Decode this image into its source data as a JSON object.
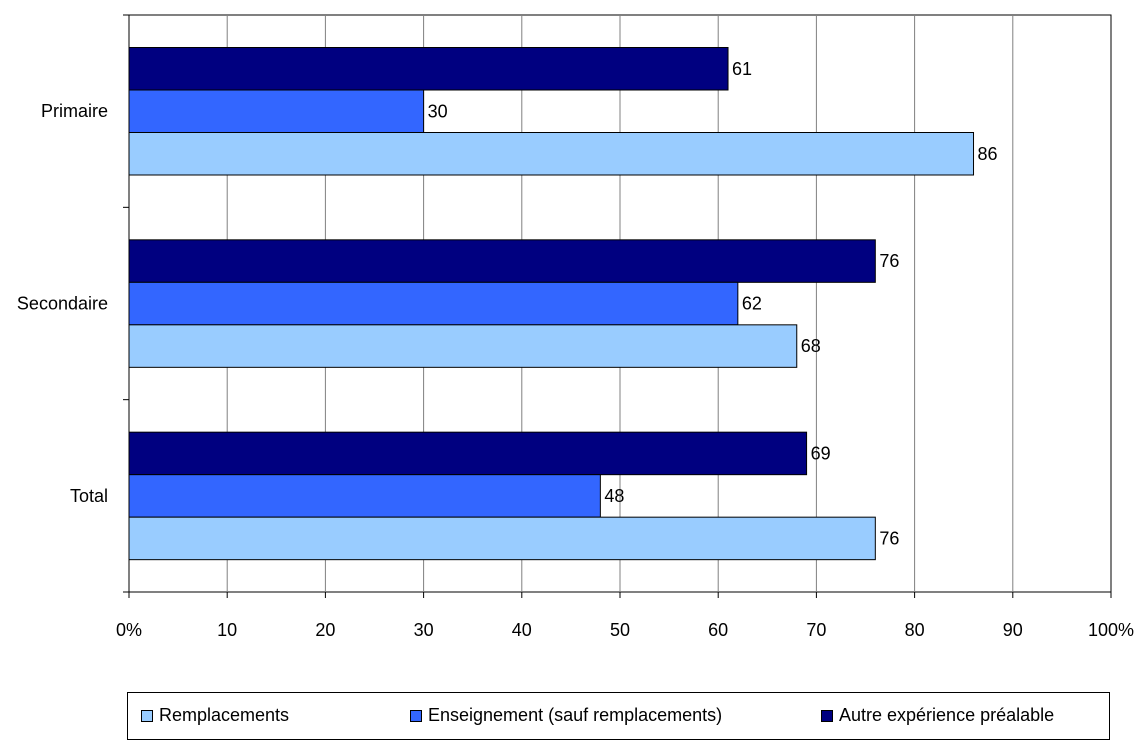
{
  "chart_data": {
    "type": "bar",
    "orientation": "horizontal",
    "categories": [
      "Primaire",
      "Secondaire",
      "Total"
    ],
    "series": [
      {
        "name": "Autre expérience préalable",
        "values": [
          61,
          76,
          69
        ],
        "color": "#000080"
      },
      {
        "name": "Enseignement (sauf remplacements)",
        "values": [
          30,
          62,
          48
        ],
        "color": "#3366ff"
      },
      {
        "name": "Remplacements",
        "values": [
          86,
          68,
          76
        ],
        "color": "#99ccff"
      }
    ],
    "xlim": [
      0,
      100
    ],
    "xticks": [
      "0%",
      "10",
      "20",
      "30",
      "40",
      "50",
      "60",
      "70",
      "80",
      "90",
      "100%"
    ],
    "legend_order": [
      "Remplacements",
      "Enseignement (sauf remplacements)",
      "Autre expérience préalable"
    ],
    "legend_placement": "bottom",
    "grid": true
  }
}
